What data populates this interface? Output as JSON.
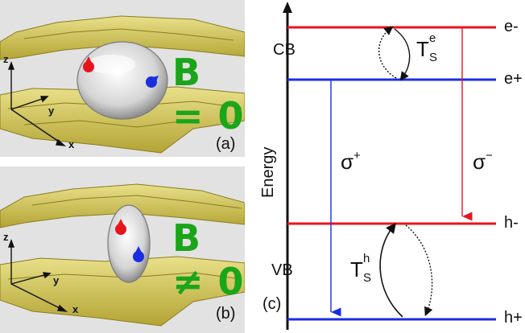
{
  "panel_a": {
    "label": "(a)",
    "field_label": "B = 0",
    "axes": {
      "z": "z",
      "y": "y",
      "x": "x"
    }
  },
  "panel_b": {
    "label": "(b)",
    "field_label": "B ≠ 0",
    "axes": {
      "z": "z",
      "y": "y",
      "x": "x"
    }
  },
  "diagram": {
    "label": "(c)",
    "axis_label": "Energy",
    "bands": {
      "cb": "CB",
      "vb": "VB"
    },
    "levels": {
      "e_minus": "e-",
      "e_plus": "e+",
      "h_minus": "h-",
      "h_plus": "h+"
    },
    "transitions": {
      "sigma_plus": "σ",
      "sigma_plus_sup": "+",
      "sigma_minus": "σ",
      "sigma_minus_sup": "−"
    },
    "spin_flip_e": {
      "base": "T",
      "sup": "e",
      "sub": "S"
    },
    "spin_flip_h": {
      "base": "T",
      "sup": "h",
      "sub": "S"
    },
    "colors": {
      "red": "#e8141c",
      "blue": "#1a2ee0"
    }
  }
}
